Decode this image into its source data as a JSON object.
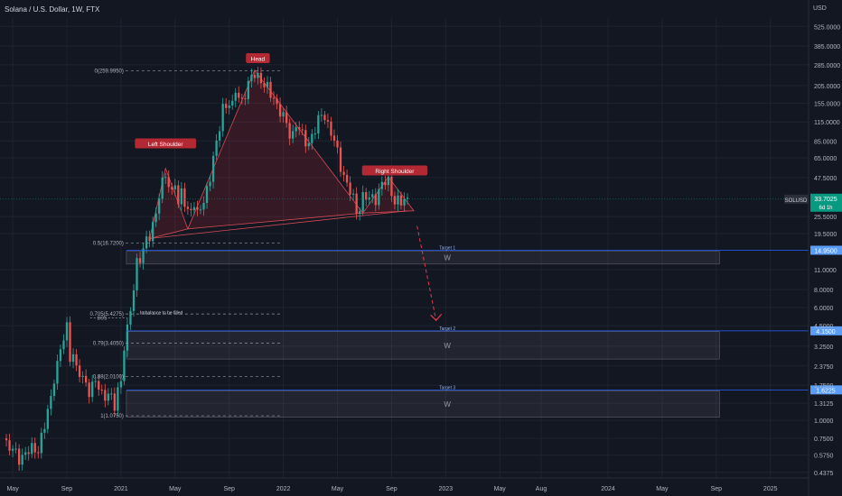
{
  "symbol": {
    "title": "Solana / U.S. Dollar, 1W, FTX",
    "ticker": "SOLUSD",
    "last_price": "33.7025",
    "countdown": "6d 1h",
    "currency": "USD"
  },
  "colors": {
    "background": "#131722",
    "grid": "#1f2330",
    "bull": "#26a69a",
    "bear": "#ef5350",
    "axis_text": "#b2b5be",
    "fib_line": "#9598a1",
    "target_line": "#2962ff",
    "label_red": "#b22833",
    "price_tag": "#089981",
    "target_tag": "#5b9cf6",
    "arrow": "#e8394a"
  },
  "chart_data": {
    "type": "candlestick",
    "y_scale": "log",
    "ylim": [
      0.4,
      600
    ],
    "y_ticks": [
      "525.0000",
      "385.0000",
      "285.0000",
      "205.0000",
      "155.0000",
      "115.0000",
      "85.0000",
      "65.0000",
      "47.5000",
      "25.5000",
      "19.5000",
      "11.0000",
      "8.0000",
      "6.0000",
      "4.5000",
      "3.2500",
      "2.3750",
      "1.7500",
      "1.3125",
      "1.0000",
      "0.7500",
      "0.5750",
      "0.4375"
    ],
    "y_tick_values": [
      525,
      385,
      285,
      205,
      155,
      115,
      85,
      65,
      47.5,
      25.5,
      19.5,
      11,
      8,
      6,
      4.5,
      3.25,
      2.375,
      1.75,
      1.3125,
      1.0,
      0.75,
      0.575,
      0.4375
    ],
    "x_ticks": [
      {
        "label": "May",
        "week": 0
      },
      {
        "label": "Sep",
        "week": 17
      },
      {
        "label": "2021",
        "week": 34
      },
      {
        "label": "May",
        "week": 51
      },
      {
        "label": "Sep",
        "week": 68
      },
      {
        "label": "2022",
        "week": 85
      },
      {
        "label": "May",
        "week": 102
      },
      {
        "label": "Sep",
        "week": 119
      },
      {
        "label": "2023",
        "week": 136
      },
      {
        "label": "May",
        "week": 153
      },
      {
        "label": "Aug",
        "week": 166
      },
      {
        "label": "2024",
        "week": 187
      },
      {
        "label": "May",
        "week": 204
      },
      {
        "label": "Sep",
        "week": 221
      },
      {
        "label": "2025",
        "week": 238
      }
    ],
    "x_range_weeks": [
      -4,
      250
    ],
    "candle_anchors": [
      [
        -3,
        0.75
      ],
      [
        0,
        0.6
      ],
      [
        2,
        0.57
      ],
      [
        5,
        0.6
      ],
      [
        8,
        0.66
      ],
      [
        10,
        0.9
      ],
      [
        12,
        1.4
      ],
      [
        13,
        2.1
      ],
      [
        15,
        3.0
      ],
      [
        16,
        3.6
      ],
      [
        17,
        4.3
      ],
      [
        18,
        2.8
      ],
      [
        19,
        3.1
      ],
      [
        20,
        2.2
      ],
      [
        22,
        1.9
      ],
      [
        24,
        1.7
      ],
      [
        26,
        1.8
      ],
      [
        28,
        1.5
      ],
      [
        30,
        1.6
      ],
      [
        32,
        1.2
      ],
      [
        33,
        1.6
      ],
      [
        34,
        1.9
      ],
      [
        35,
        3.5
      ],
      [
        36,
        4.2
      ],
      [
        37,
        5.5
      ],
      [
        38,
        8.0
      ],
      [
        39,
        12.5
      ],
      [
        40,
        14.0
      ],
      [
        41,
        15.5
      ],
      [
        43,
        18.0
      ],
      [
        45,
        28
      ],
      [
        46,
        38
      ],
      [
        48,
        47
      ],
      [
        49,
        42
      ],
      [
        50,
        38
      ],
      [
        51,
        48
      ],
      [
        52,
        30
      ],
      [
        53,
        36
      ],
      [
        55,
        28
      ],
      [
        57,
        32
      ],
      [
        58,
        25
      ],
      [
        60,
        33
      ],
      [
        62,
        50
      ],
      [
        64,
        78
      ],
      [
        66,
        150
      ],
      [
        68,
        155
      ],
      [
        69,
        140
      ],
      [
        70,
        190
      ],
      [
        72,
        165
      ],
      [
        74,
        200
      ],
      [
        76,
        258
      ],
      [
        77,
        245
      ],
      [
        78,
        225
      ],
      [
        79,
        200
      ],
      [
        80,
        190
      ],
      [
        82,
        175
      ],
      [
        83,
        150
      ],
      [
        85,
        120
      ],
      [
        87,
        100
      ],
      [
        88,
        96
      ],
      [
        89,
        110
      ],
      [
        91,
        90
      ],
      [
        93,
        85
      ],
      [
        95,
        100
      ],
      [
        97,
        130
      ],
      [
        98,
        135
      ],
      [
        99,
        110
      ],
      [
        101,
        82
      ],
      [
        103,
        60
      ],
      [
        105,
        42
      ],
      [
        107,
        33
      ],
      [
        108,
        28
      ],
      [
        110,
        35
      ],
      [
        112,
        33
      ],
      [
        114,
        36
      ],
      [
        116,
        42
      ],
      [
        118,
        44
      ],
      [
        120,
        34
      ],
      [
        122,
        31
      ],
      [
        124,
        33.7
      ]
    ]
  },
  "annotations": {
    "labels": [
      {
        "text": "Head",
        "week": 77,
        "price": 310
      },
      {
        "text": "Left Shoulder",
        "week": 48,
        "price": 80
      },
      {
        "text": "Right Shoulder",
        "week": 120,
        "price": 52
      }
    ],
    "fib_levels": [
      {
        "text": "0(259.9950)",
        "price": 260.0
      },
      {
        "text": "0.5(16.7200)",
        "price": 16.72
      },
      {
        "text": "0.705(5.4275)",
        "price": 5.4275
      },
      {
        "text": "0.79(3.4050)",
        "price": 3.405
      },
      {
        "text": "0.88(2.0100)",
        "price": 2.01
      },
      {
        "text": "1(1.0750)",
        "price": 1.075
      }
    ],
    "bos_text": "BOS",
    "imbalance_text": "Imbalance to be filled",
    "zone_mark": "W",
    "targets": [
      {
        "text": "Target 1",
        "price": 14.95,
        "tag": "14.9500",
        "zone_top": 14.7,
        "zone_bottom": 12.0
      },
      {
        "text": "Target 2",
        "price": 4.15,
        "tag": "4.1500",
        "zone_top": 4.1,
        "zone_bottom": 2.65
      },
      {
        "text": "Target 3",
        "price": 1.6225,
        "tag": "1.6225",
        "zone_top": 1.6,
        "zone_bottom": 1.05
      }
    ]
  }
}
